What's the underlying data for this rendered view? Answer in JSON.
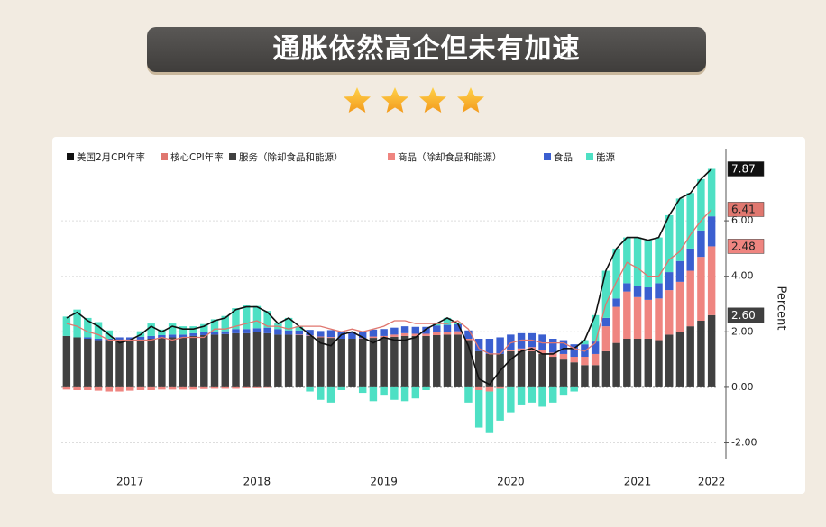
{
  "header": {
    "title": "通胀依然高企但未有加速"
  },
  "chart_data": {
    "type": "bar",
    "y_label": "Percent",
    "categories": [
      null,
      null,
      null,
      null,
      null,
      null,
      "2017",
      null,
      null,
      null,
      null,
      null,
      null,
      null,
      null,
      null,
      null,
      null,
      "2018",
      null,
      null,
      null,
      null,
      null,
      null,
      null,
      null,
      null,
      null,
      null,
      "2019",
      null,
      null,
      null,
      null,
      null,
      null,
      null,
      null,
      null,
      null,
      null,
      "2020",
      null,
      null,
      null,
      null,
      null,
      null,
      null,
      null,
      null,
      null,
      null,
      "2021",
      null,
      null,
      null,
      null,
      null,
      null,
      "2022"
    ],
    "series": [
      {
        "name": "美国2月CPI年率",
        "type": "line",
        "color": "#111111",
        "values": [
          2.5,
          2.7,
          2.4,
          2.2,
          1.9,
          1.6,
          1.7,
          1.9,
          2.2,
          2.0,
          2.2,
          2.1,
          2.1,
          2.2,
          2.4,
          2.5,
          2.8,
          2.9,
          2.9,
          2.7,
          2.3,
          2.5,
          2.2,
          1.9,
          1.6,
          1.5,
          1.9,
          2.0,
          1.8,
          1.6,
          1.8,
          1.7,
          1.7,
          1.8,
          2.1,
          2.3,
          2.5,
          2.3,
          1.5,
          0.3,
          0.1,
          0.6,
          1.0,
          1.3,
          1.4,
          1.2,
          1.2,
          1.4,
          1.4,
          1.7,
          2.6,
          4.2,
          5.0,
          5.4,
          5.4,
          5.3,
          5.4,
          6.2,
          6.8,
          7.0,
          7.5,
          7.87
        ]
      },
      {
        "name": "核心CPI年率",
        "type": "line",
        "color": "#e0776f",
        "values": [
          2.3,
          2.2,
          2.0,
          1.9,
          1.7,
          1.7,
          1.7,
          1.7,
          1.7,
          1.8,
          1.7,
          1.8,
          1.8,
          1.8,
          2.1,
          2.1,
          2.2,
          2.3,
          2.4,
          2.2,
          2.2,
          2.1,
          2.2,
          2.2,
          2.2,
          2.1,
          2.0,
          2.1,
          2.0,
          2.1,
          2.2,
          2.4,
          2.4,
          2.3,
          2.3,
          2.3,
          2.3,
          2.4,
          2.1,
          1.4,
          1.2,
          1.2,
          1.6,
          1.7,
          1.7,
          1.6,
          1.6,
          1.6,
          1.4,
          1.3,
          1.6,
          3.0,
          3.8,
          4.5,
          4.3,
          4.0,
          4.0,
          4.6,
          4.9,
          5.5,
          6.0,
          6.41
        ]
      },
      {
        "name": "服务（除却食品和能源）",
        "type": "bar",
        "color": "#404040",
        "values": [
          1.85,
          1.8,
          1.75,
          1.7,
          1.7,
          1.7,
          1.7,
          1.72,
          1.75,
          1.78,
          1.8,
          1.8,
          1.85,
          1.88,
          1.9,
          1.92,
          1.95,
          1.95,
          1.98,
          1.95,
          1.9,
          1.9,
          1.88,
          1.85,
          1.8,
          1.78,
          1.75,
          1.75,
          1.75,
          1.78,
          1.8,
          1.82,
          1.85,
          1.85,
          1.85,
          1.88,
          1.9,
          1.9,
          1.7,
          1.3,
          1.2,
          1.2,
          1.3,
          1.3,
          1.3,
          1.2,
          1.1,
          1.0,
          0.9,
          0.8,
          0.8,
          1.3,
          1.6,
          1.75,
          1.75,
          1.75,
          1.7,
          1.9,
          2.0,
          2.2,
          2.4,
          2.6
        ],
        "value_labels": [
          null,
          null,
          null,
          null,
          null,
          null,
          null,
          null,
          null,
          null,
          null,
          null,
          null,
          null,
          null,
          null,
          null,
          null,
          null,
          null,
          null,
          null,
          null,
          null,
          null,
          null,
          null,
          null,
          null,
          null,
          null,
          null,
          null,
          null,
          null,
          null,
          null,
          null,
          null,
          null,
          null,
          null,
          null,
          null,
          null,
          null,
          null,
          null,
          null,
          null,
          null,
          null,
          null,
          null,
          null,
          null,
          null,
          null,
          null,
          null,
          null,
          "2.60"
        ]
      },
      {
        "name": "商品（除却食品和能源）",
        "type": "bar",
        "color": "#ef8580",
        "values": [
          -0.08,
          -0.1,
          -0.1,
          -0.12,
          -0.15,
          -0.15,
          -0.12,
          -0.1,
          -0.1,
          -0.08,
          -0.08,
          -0.08,
          -0.08,
          -0.06,
          -0.05,
          -0.05,
          -0.05,
          -0.03,
          -0.03,
          -0.02,
          0.0,
          0.0,
          0.02,
          0.02,
          0.03,
          0.03,
          0.0,
          0.0,
          0.02,
          0.05,
          0.05,
          0.08,
          0.1,
          0.08,
          0.08,
          0.1,
          0.1,
          0.12,
          0.05,
          -0.1,
          -0.15,
          -0.05,
          0.05,
          0.1,
          0.15,
          0.15,
          0.15,
          0.2,
          0.2,
          0.3,
          0.4,
          0.9,
          1.3,
          1.7,
          1.5,
          1.4,
          1.5,
          1.6,
          1.8,
          2.0,
          2.3,
          2.48
        ]
      },
      {
        "name": "食品",
        "type": "bar",
        "color": "#3b5fd0",
        "values": [
          0.0,
          0.0,
          0.05,
          0.05,
          0.05,
          0.1,
          0.1,
          0.1,
          0.1,
          0.1,
          0.1,
          0.1,
          0.1,
          0.1,
          0.1,
          0.1,
          0.15,
          0.15,
          0.15,
          0.2,
          0.2,
          0.15,
          0.15,
          0.2,
          0.2,
          0.25,
          0.25,
          0.25,
          0.25,
          0.25,
          0.25,
          0.25,
          0.25,
          0.25,
          0.25,
          0.25,
          0.25,
          0.25,
          0.3,
          0.45,
          0.55,
          0.6,
          0.55,
          0.55,
          0.5,
          0.55,
          0.5,
          0.5,
          0.45,
          0.45,
          0.45,
          0.3,
          0.3,
          0.3,
          0.4,
          0.45,
          0.55,
          0.65,
          0.75,
          0.8,
          0.95,
          1.08
        ]
      },
      {
        "name": "能源",
        "type": "bar",
        "color": "#4ee0c4",
        "values": [
          0.7,
          1.0,
          0.7,
          0.6,
          0.3,
          0.0,
          0.0,
          0.2,
          0.45,
          0.2,
          0.4,
          0.3,
          0.25,
          0.3,
          0.45,
          0.55,
          0.75,
          0.85,
          0.8,
          0.6,
          0.2,
          0.45,
          0.15,
          -0.15,
          -0.45,
          -0.55,
          -0.1,
          0.0,
          -0.2,
          -0.5,
          -0.3,
          -0.45,
          -0.5,
          -0.4,
          -0.1,
          0.1,
          0.25,
          0.05,
          -0.55,
          -1.35,
          -1.5,
          -1.15,
          -0.9,
          -0.65,
          -0.55,
          -0.7,
          -0.55,
          -0.3,
          -0.15,
          0.15,
          0.95,
          1.7,
          1.8,
          1.65,
          1.75,
          1.7,
          1.65,
          2.05,
          2.25,
          2.0,
          1.85,
          1.71
        ]
      }
    ],
    "ylim": [
      -2.6,
      8.6
    ],
    "yticks": [
      {
        "value": -2,
        "label": "-2.00"
      },
      {
        "value": 0,
        "label": "0.00"
      },
      {
        "value": 2,
        "label": "2.00"
      },
      {
        "value": 4,
        "label": "4.00"
      },
      {
        "value": 6,
        "label": "6.00"
      }
    ],
    "grid": true
  }
}
